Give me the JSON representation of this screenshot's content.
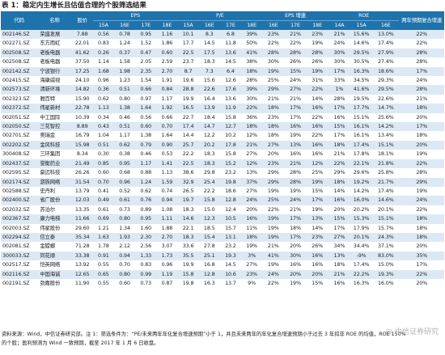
{
  "title": "表 1：稳定内生增长且估值合理的个股筛选结果",
  "headers": {
    "code": "代码",
    "name": "名称",
    "price": "股价",
    "eps": "EPS",
    "pe": "P/E",
    "eps_growth": "EPS 增速",
    "roe": "ROE",
    "two_year_cagr": "两年预期复合增速",
    "sub": {
      "eps": [
        "15A",
        "16E",
        "17E",
        "18E"
      ],
      "pe": [
        "15A",
        "16E",
        "17E",
        "18E"
      ],
      "eps_growth": [
        "16E",
        "17E",
        "18E"
      ],
      "roe": [
        "14A",
        "15A",
        "16E"
      ]
    }
  },
  "rows": [
    [
      "002146.SZ",
      "荣盛发展",
      "7.88",
      "0.56",
      "0.78",
      "0.95",
      "1.16",
      "10.1",
      "8.3",
      "6.8",
      "39%",
      "23%",
      "21%",
      "23%",
      "21%",
      "15.6%",
      "13.0%",
      "22%"
    ],
    [
      "002271.SZ",
      "东方雨虹",
      "22.01",
      "0.83",
      "1.24",
      "1.52",
      "1.86",
      "17.7",
      "14.5",
      "11.8",
      "50%",
      "22%",
      "22%",
      "19%",
      "24%",
      "14.6%",
      "17.4%",
      "22%"
    ],
    [
      "002508.SZ",
      "老板电器",
      "41.62",
      "0.26",
      "0.37",
      "0.47",
      "0.60",
      "22.5",
      "17.5",
      "13.6",
      "41%",
      "28%",
      "28%",
      "28%",
      "30%",
      "29.5%",
      "27.9%",
      "28%"
    ],
    [
      "002508.SZ",
      "老板电器",
      "37.50",
      "1.14",
      "1.58",
      "2.05",
      "2.59",
      "23.7",
      "18.3",
      "14.5",
      "38%",
      "30%",
      "26%",
      "26%",
      "30%",
      "30.5%",
      "27.4%",
      "28%"
    ],
    [
      "002142.SZ",
      "宁波银行",
      "17.25",
      "1.68",
      "1.98",
      "2.35",
      "2.70",
      "8.7",
      "7.3",
      "6.4",
      "18%",
      "19%",
      "15%",
      "19%",
      "17%",
      "16.3%",
      "18.6%",
      "17%"
    ],
    [
      "002415.SZ",
      "海康威视",
      "24.10",
      "0.96",
      "1.23",
      "1.54",
      "1.91",
      "19.6",
      "15.6",
      "12.6",
      "28%",
      "25%",
      "24%",
      "31%",
      "33%",
      "34.5%",
      "29.3%",
      "24%"
    ],
    [
      "002573.SZ",
      "清新环境",
      "14.82",
      "0.36",
      "0.51",
      "0.66",
      "0.84",
      "28.8",
      "22.6",
      "17.6",
      "39%",
      "29%",
      "27%",
      "22%",
      "1%",
      "41.6%",
      "29.5%",
      "28%"
    ],
    [
      "002323.SZ",
      "雅百特",
      "15.90",
      "0.62",
      "0.80",
      "0.97",
      "1.17",
      "19.9",
      "16.4",
      "13.6",
      "30%",
      "21%",
      "21%",
      "14%",
      "28%",
      "19.5%",
      "22.6%",
      "21%"
    ],
    [
      "002372.SZ",
      "伟星新材",
      "22.78",
      "1.13",
      "1.38",
      "1.64",
      "1.92",
      "16.5",
      "13.9",
      "11.9",
      "22%",
      "18%",
      "17%",
      "16%",
      "17%",
      "17.7%",
      "14.7%",
      "18%"
    ],
    [
      "002051.SZ",
      "中工国际",
      "10.39",
      "0.34",
      "0.46",
      "0.56",
      "0.66",
      "22.7",
      "18.4",
      "15.8",
      "36%",
      "23%",
      "17%",
      "22%",
      "16%",
      "15.1%",
      "25.6%",
      "20%"
    ],
    [
      "002050.SZ",
      "三花智控",
      "8.89",
      "0.43",
      "0.51",
      "0.60",
      "0.70",
      "17.4",
      "14.7",
      "12.7",
      "18%",
      "18%",
      "16%",
      "16%",
      "15%",
      "16.1%",
      "14.2%",
      "17%"
    ],
    [
      "002701.SZ",
      "奥瑞金",
      "16.79",
      "1.04",
      "1.17",
      "1.38",
      "1.64",
      "14.4",
      "12.2",
      "10.2",
      "12%",
      "18%",
      "19%",
      "22%",
      "17%",
      "16.1%",
      "13.4%",
      "18%"
    ],
    [
      "002202.SZ",
      "金风科技",
      "15.98",
      "0.51",
      "0.62",
      "0.79",
      "0.90",
      "25.7",
      "20.2",
      "17.8",
      "21%",
      "27%",
      "13%",
      "16%",
      "18%",
      "17.4%",
      "15.1%",
      "20%"
    ],
    [
      "300408.SZ",
      "三环集团",
      "8.34",
      "0.30",
      "0.38",
      "0.46",
      "0.53",
      "22.2",
      "18.3",
      "15.8",
      "27%",
      "20%",
      "16%",
      "16%",
      "21%",
      "17.8%",
      "18.1%",
      "19%"
    ],
    [
      "002437.SZ",
      "誉衡药业",
      "21.49",
      "0.85",
      "0.95",
      "1.17",
      "1.41",
      "22.5",
      "18.3",
      "15.2",
      "12%",
      "23%",
      "21%",
      "12%",
      "22%",
      "22.1%",
      "21.8%",
      "22%"
    ],
    [
      "002595.SZ",
      "豪迈科技",
      "26.26",
      "0.60",
      "0.68",
      "0.88",
      "1.13",
      "38.6",
      "29.8",
      "23.2",
      "13%",
      "29%",
      "28%",
      "25%",
      "29%",
      "29.6%",
      "25.8%",
      "28%"
    ],
    [
      "002174.SZ",
      "游族网络",
      "31.54",
      "0.70",
      "0.96",
      "1.24",
      "1.59",
      "32.9",
      "25.4",
      "19.8",
      "37%",
      "29%",
      "28%",
      "19%",
      "18%",
      "19.2%",
      "21.7%",
      "29%"
    ],
    [
      "002588.SZ",
      "史丹利",
      "13.79",
      "0.41",
      "0.52",
      "0.62",
      "0.74",
      "26.5",
      "22.2",
      "18.6",
      "27%",
      "19%",
      "19%",
      "15%",
      "14%",
      "14.2%",
      "17.4%",
      "19%"
    ],
    [
      "002400.SZ",
      "省广股份",
      "12.03",
      "0.49",
      "0.61",
      "0.76",
      "0.94",
      "19.7",
      "15.8",
      "12.8",
      "24%",
      "25%",
      "24%",
      "17%",
      "16%",
      "16.0%",
      "14.6%",
      "24%"
    ],
    [
      "002032.SZ",
      "苏泊尔",
      "13.35",
      "0.61",
      "0.73",
      "0.89",
      "1.08",
      "18.3",
      "15.0",
      "12.4",
      "20%",
      "22%",
      "21%",
      "19%",
      "20%",
      "20.2%",
      "20.1%",
      "22%"
    ],
    [
      "002367.SZ",
      "康力电梯",
      "11.66",
      "0.69",
      "0.80",
      "0.95",
      "1.11",
      "14.6",
      "12.3",
      "10.5",
      "16%",
      "19%",
      "17%",
      "13%",
      "15%",
      "15.3%",
      "15.1%",
      "18%"
    ],
    [
      "002003.SZ",
      "伟星股份",
      "29.60",
      "1.21",
      "1.34",
      "1.60",
      "1.88",
      "22.1",
      "18.5",
      "15.7",
      "11%",
      "19%",
      "18%",
      "14%",
      "17%",
      "17.9%",
      "15.7%",
      "18%"
    ],
    [
      "002294.SZ",
      "信立泰",
      "35.34",
      "1.63",
      "1.93",
      "2.30",
      "2.70",
      "18.3",
      "15.4",
      "13.1",
      "18%",
      "19%",
      "17%",
      "23%",
      "27%",
      "20.1%",
      "24.3%",
      "18%"
    ],
    [
      "002081.SZ",
      "金螳螂",
      "71.28",
      "1.78",
      "2.12",
      "2.56",
      "3.07",
      "33.6",
      "27.8",
      "23.2",
      "19%",
      "21%",
      "20%",
      "26%",
      "34%",
      "34.4%",
      "37.1%",
      "20%"
    ],
    [
      "300033.SZ",
      "同花顺",
      "33.38",
      "0.91",
      "0.94",
      "1.33",
      "1.73",
      "35.5",
      "25.1",
      "19.3",
      "3%",
      "41%",
      "30%",
      "16%",
      "13%",
      "-9%",
      "83.0%",
      "35%"
    ],
    [
      "002517.SZ",
      "恺英网络",
      "13.92",
      "0.55",
      "0.70",
      "0.83",
      "0.96",
      "19.9",
      "16.8",
      "14.5",
      "27%",
      "19%",
      "16%",
      "16%",
      "18%",
      "17.4%",
      "15.0%",
      "17%"
    ],
    [
      "002116.SZ",
      "中国海诚",
      "12.65",
      "0.65",
      "0.80",
      "0.99",
      "1.19",
      "15.8",
      "12.8",
      "10.6",
      "23%",
      "24%",
      "20%",
      "20%",
      "21%",
      "22.2%",
      "19.3%",
      "22%"
    ],
    [
      "002191.SZ",
      "劲嘉股份",
      "11.90",
      "0.55",
      "0.60",
      "0.73",
      "0.87",
      "19.8",
      "16.3",
      "13.7",
      "9%",
      "22%",
      "19%",
      "15%",
      "16%",
      "16.3%",
      "16.0%",
      "20%"
    ]
  ],
  "footer": [
    "资料来源：Wind，中信证券研究部。注 1：筛选条件为：“PE/未来两年年化复合增速预期”小于 1，并且未来两年的年化复合增速预期小于过去 3 年扣非 ROE 的均值，ROE 150%",
    "的个股；盈利预测为 Wind 一致预期，截至 2017 年 1 月 6 日收盘。"
  ],
  "watermark": "@ 中信证券研究"
}
